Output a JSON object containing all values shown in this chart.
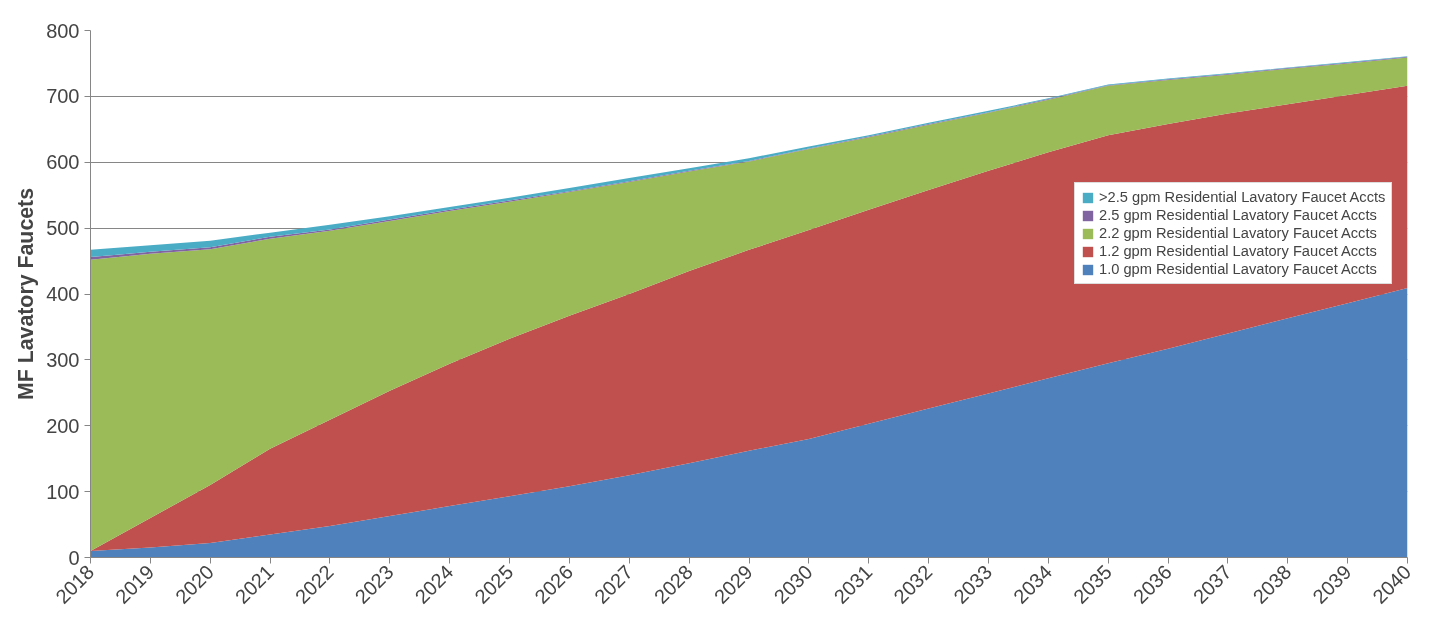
{
  "chart_data": {
    "type": "area",
    "stacked": true,
    "ylabel": "MF Lavatory Faucets",
    "x": [
      2018,
      2019,
      2020,
      2021,
      2022,
      2023,
      2024,
      2025,
      2026,
      2027,
      2028,
      2029,
      2030,
      2031,
      2032,
      2033,
      2034,
      2035,
      2036,
      2037,
      2038,
      2039,
      2040
    ],
    "series": [
      {
        "name": "1.0 gpm Residential Lavatory Faucet Accts",
        "color": "#4f81bd",
        "values": [
          10,
          15,
          22,
          35,
          48,
          63,
          78,
          93,
          108,
          125,
          143,
          162,
          180,
          203,
          226,
          249,
          272,
          295,
          317,
          340,
          363,
          386,
          409
        ]
      },
      {
        "name": "1.2 gpm Residential Lavatory Faucet Accts",
        "color": "#c0504d",
        "values": [
          0,
          45,
          88,
          130,
          161,
          190,
          216,
          239,
          259,
          275,
          292,
          305,
          317,
          325,
          332,
          338,
          343,
          346,
          341,
          334,
          325,
          316,
          307
        ]
      },
      {
        "name": "2.2 gpm Residential Lavatory Faucet Accts",
        "color": "#9bbb59",
        "values": [
          442,
          401,
          358,
          319,
          287,
          258,
          232,
          208,
          188,
          170,
          151,
          134,
          123,
          110,
          99,
          88,
          80,
          75,
          67,
          59,
          54,
          48,
          43
        ]
      },
      {
        "name": "2.5 gpm Residential Lavatory Faucet Accts",
        "color": "#8064a2",
        "values": [
          4,
          3,
          3,
          3,
          2,
          2,
          2,
          2,
          1,
          1,
          1,
          1,
          1,
          1,
          1,
          1,
          1,
          1,
          1,
          1,
          1,
          1,
          1
        ]
      },
      {
        "name": ">2.5 gpm Residential Lavatory Faucet Accts",
        "color": "#4bacc6",
        "values": [
          11,
          10,
          10,
          6,
          7,
          5,
          4,
          4,
          5,
          5,
          4,
          4,
          3,
          2,
          2,
          2,
          1,
          1,
          1,
          1,
          1,
          1,
          1
        ]
      }
    ],
    "xlim": [
      2018,
      2040
    ],
    "xticks": [
      2018,
      2019,
      2020,
      2021,
      2022,
      2023,
      2024,
      2025,
      2026,
      2027,
      2028,
      2029,
      2030,
      2031,
      2032,
      2033,
      2034,
      2035,
      2036,
      2037,
      2038,
      2039,
      2040
    ],
    "ylim": [
      0,
      800
    ],
    "yticks": [
      0,
      100,
      200,
      300,
      400,
      500,
      600,
      700,
      800
    ],
    "grid": "y",
    "legend": "right"
  }
}
